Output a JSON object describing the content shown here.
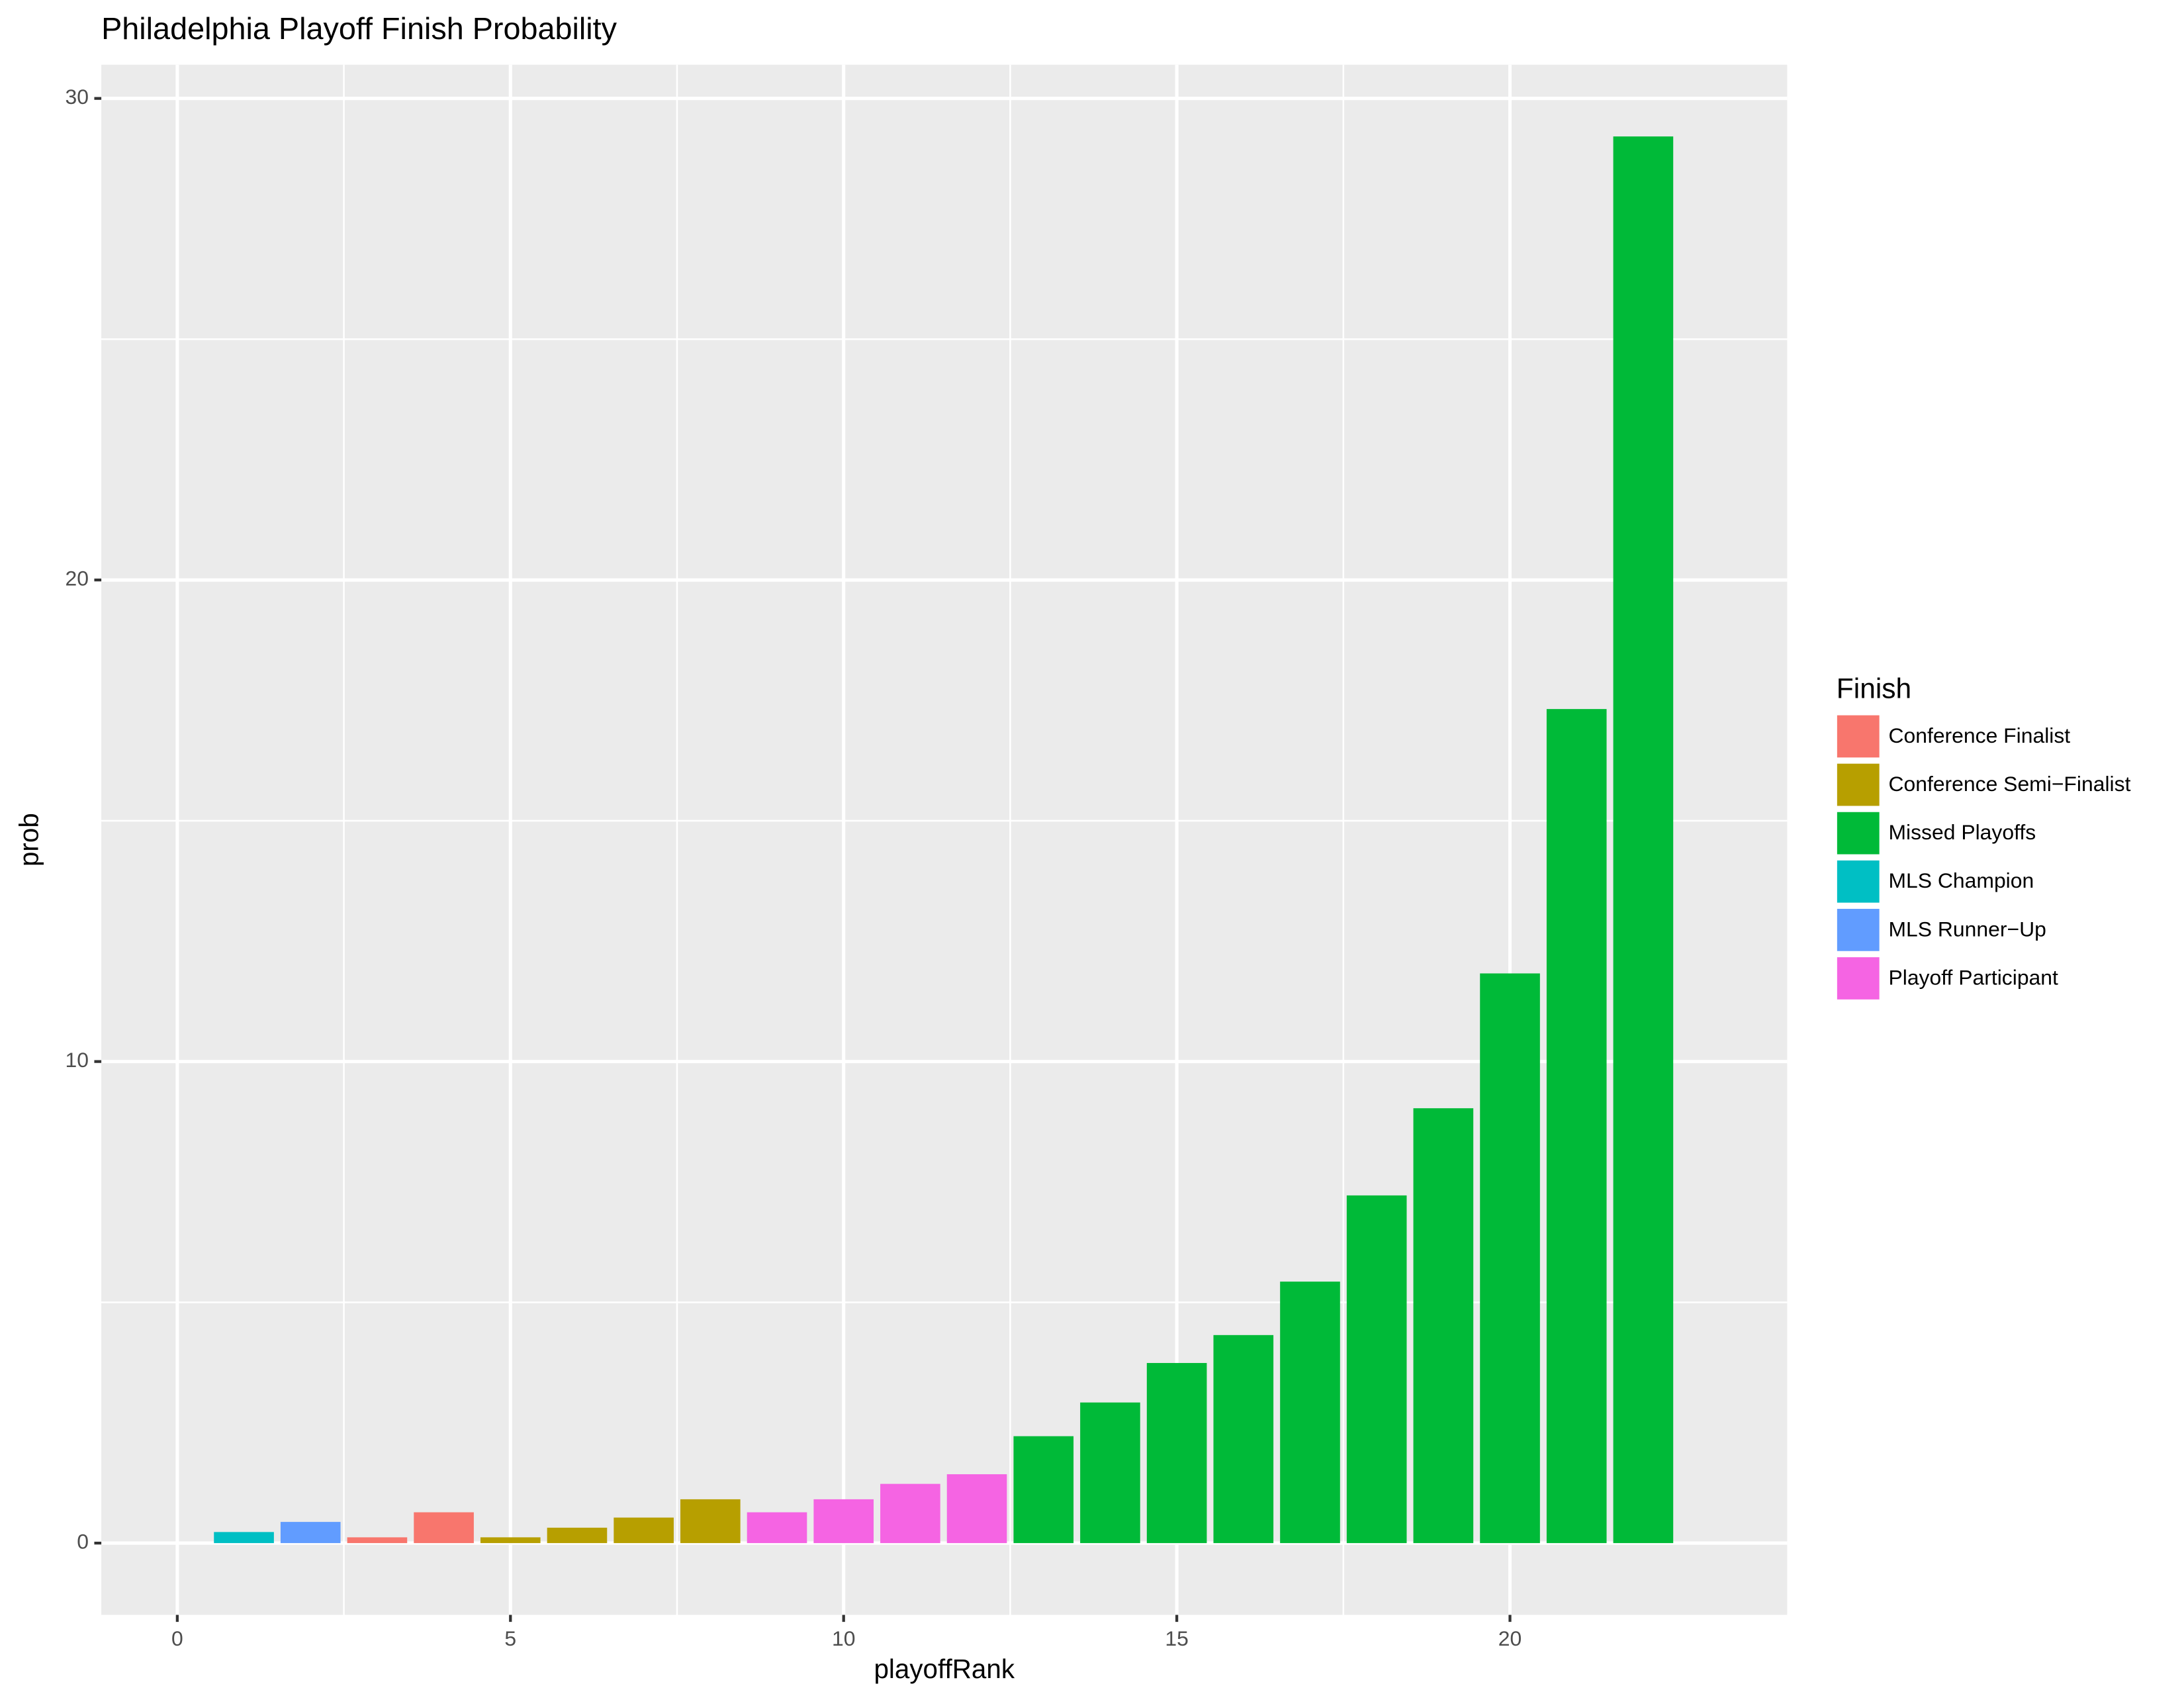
{
  "chart_data": {
    "type": "bar",
    "title": "Philadelphia Playoff Finish Probability",
    "x_label": "playoffRank",
    "y_label": "prob",
    "legend_title": "Finish",
    "series": [
      {
        "name": "Conference Finalist",
        "color": "#F8766D",
        "x": [
          3,
          4
        ],
        "values": [
          0.12,
          0.64
        ]
      },
      {
        "name": "Conference Semi−Finalist",
        "color": "#B79F00",
        "x": [
          5,
          6,
          7,
          8
        ],
        "values": [
          0.12,
          0.32,
          0.53,
          0.91
        ]
      },
      {
        "name": "Missed Playoffs",
        "color": "#00BA38",
        "x": [
          13,
          14,
          15,
          16,
          17,
          18,
          19,
          20,
          21,
          22
        ],
        "values": [
          2.22,
          2.92,
          3.74,
          4.32,
          5.43,
          7.22,
          9.03,
          11.83,
          17.32,
          29.21
        ]
      },
      {
        "name": "MLS Champion",
        "color": "#00BFC4",
        "x": [
          1
        ],
        "values": [
          0.23
        ]
      },
      {
        "name": "MLS Runner−Up",
        "color": "#619CFF",
        "x": [
          2
        ],
        "values": [
          0.44
        ]
      },
      {
        "name": "Playoff Participant",
        "color": "#F564E3",
        "x": [
          9,
          10,
          11,
          12
        ],
        "values": [
          0.64,
          0.91,
          1.23,
          1.43
        ]
      }
    ],
    "xlim": [
      -1.14,
      24.16
    ],
    "ylim": [
      -1.49,
      30.7
    ],
    "xticks": [
      0,
      5,
      10,
      15,
      20
    ],
    "yticks": [
      0,
      10,
      20,
      30
    ],
    "grid": true,
    "legend_position": "right"
  }
}
